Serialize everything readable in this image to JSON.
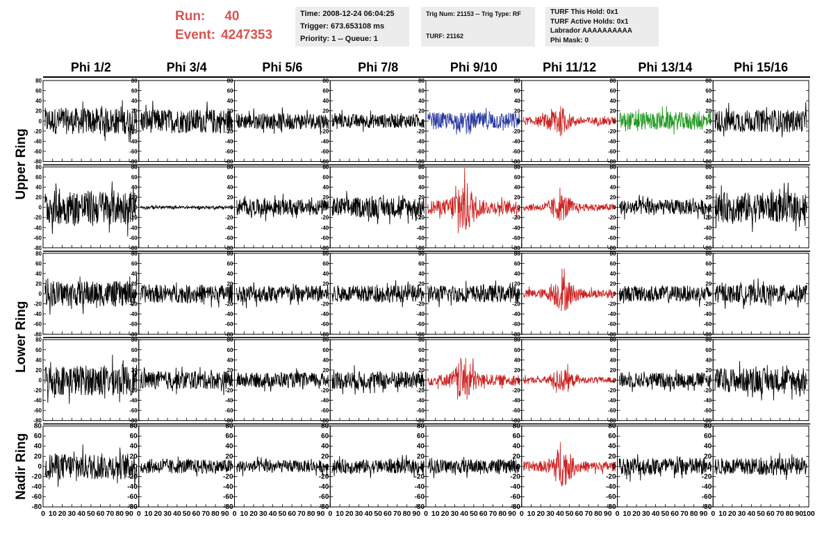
{
  "header": {
    "run_label": "Run:",
    "run_value": "40",
    "event_label": "Event:",
    "event_value": "4247353",
    "time": "Time: 2008-12-24 06:04:25",
    "trigger": "Trigger: 673.653108 ms",
    "priority": "Priority: 1 -- Queue: 1",
    "trig_num": "Trig Num: 21153 -- Trig Type: RF",
    "turf": "TURF: 21162",
    "turf_this_hold": "TURF This Hold: 0x1",
    "turf_active_holds": "TURF Active Holds: 0x1",
    "labrador": "Labrador AAAAAAAAAA",
    "phi_mask": "Phi Mask: 0"
  },
  "colors": {
    "run_text": "#d9534f",
    "trace_default": "#000000",
    "trace_red": "#cc2222",
    "trace_blue": "#2a3aa0",
    "trace_green": "#229922"
  },
  "chart_data": {
    "type": "line",
    "columns": [
      "Phi 1/2",
      "Phi 3/4",
      "Phi 5/6",
      "Phi 7/8",
      "Phi 9/10",
      "Phi 11/12",
      "Phi 13/14",
      "Phi 15/16"
    ],
    "row_groups": [
      {
        "label": "Upper Ring",
        "rows": 2
      },
      {
        "label": "Lower Ring",
        "rows": 2
      },
      {
        "label": "Nadir Ring",
        "rows": 1
      }
    ],
    "xlim": [
      0,
      100
    ],
    "ylim": [
      -80,
      80
    ],
    "x_ticks": [
      "0",
      "10",
      "20",
      "30",
      "40",
      "50",
      "60",
      "70",
      "80",
      "90",
      "100"
    ],
    "y_ticks": [
      "80",
      "60",
      "40",
      "20",
      "0",
      "-20",
      "-40",
      "-60",
      "-80"
    ],
    "panels": [
      [
        {
          "color": "black",
          "amp": 26,
          "burst": 0
        },
        {
          "color": "black",
          "amp": 24,
          "burst": 0
        },
        {
          "color": "black",
          "amp": 16,
          "burst": 0
        },
        {
          "color": "black",
          "amp": 14,
          "burst": 0
        },
        {
          "color": "blue",
          "amp": 17,
          "burst": 0
        },
        {
          "color": "red",
          "amp": 16,
          "burst": 1
        },
        {
          "color": "green",
          "amp": 18,
          "burst": 0
        },
        {
          "color": "black",
          "amp": 22,
          "burst": 0
        }
      ],
      [
        {
          "color": "black",
          "amp": 34,
          "burst": 0
        },
        {
          "color": "black",
          "amp": 3,
          "burst": 0
        },
        {
          "color": "black",
          "amp": 16,
          "burst": 0
        },
        {
          "color": "black",
          "amp": 20,
          "burst": 0
        },
        {
          "color": "red",
          "amp": 28,
          "burst": 1
        },
        {
          "color": "red",
          "amp": 14,
          "burst": 1
        },
        {
          "color": "black",
          "amp": 15,
          "burst": 0
        },
        {
          "color": "black",
          "amp": 30,
          "burst": 0
        }
      ],
      [
        {
          "color": "black",
          "amp": 25,
          "burst": 0
        },
        {
          "color": "black",
          "amp": 18,
          "burst": 0
        },
        {
          "color": "black",
          "amp": 17,
          "burst": 0
        },
        {
          "color": "black",
          "amp": 17,
          "burst": 0
        },
        {
          "color": "black",
          "amp": 17,
          "burst": 0
        },
        {
          "color": "red",
          "amp": 18,
          "burst": 1
        },
        {
          "color": "black",
          "amp": 16,
          "burst": 0
        },
        {
          "color": "black",
          "amp": 18,
          "burst": 0
        }
      ],
      [
        {
          "color": "black",
          "amp": 30,
          "burst": 0
        },
        {
          "color": "black",
          "amp": 18,
          "burst": 0
        },
        {
          "color": "black",
          "amp": 15,
          "burst": 0
        },
        {
          "color": "black",
          "amp": 18,
          "burst": 0
        },
        {
          "color": "red",
          "amp": 22,
          "burst": 1
        },
        {
          "color": "red",
          "amp": 12,
          "burst": 1
        },
        {
          "color": "black",
          "amp": 15,
          "burst": 0
        },
        {
          "color": "black",
          "amp": 24,
          "burst": 0
        }
      ],
      [
        {
          "color": "black",
          "amp": 26,
          "burst": 0
        },
        {
          "color": "black",
          "amp": 14,
          "burst": 0
        },
        {
          "color": "black",
          "amp": 12,
          "burst": 0
        },
        {
          "color": "black",
          "amp": 14,
          "burst": 0
        },
        {
          "color": "black",
          "amp": 14,
          "burst": 0
        },
        {
          "color": "red",
          "amp": 20,
          "burst": 1
        },
        {
          "color": "black",
          "amp": 18,
          "burst": 0
        },
        {
          "color": "black",
          "amp": 17,
          "burst": 0
        }
      ]
    ]
  }
}
